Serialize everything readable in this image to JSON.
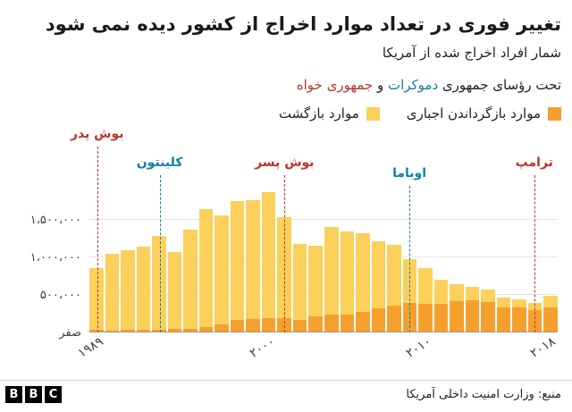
{
  "header": {
    "title": "تغییر فوری در تعداد موارد اخراج از کشور دیده نمی شود",
    "subtitle": "شمار افراد اخراج شده از آمریکا",
    "party_line": {
      "prefix": "تحت رؤسای جمهوری ",
      "democrat": "دموکرات",
      "conjunction": " و ",
      "republican": "جمهوری خواه"
    }
  },
  "colors": {
    "democrat_blue": "#1380A1",
    "republican_red": "#BB342C",
    "returns_yellow": "#FBD05B",
    "removals_orange": "#F5A02C"
  },
  "legend": [
    {
      "label": "موارد بازگرداندن اجباری",
      "color": "#F5A02C"
    },
    {
      "label": "موارد بازگشت",
      "color": "#FBD05B"
    }
  ],
  "chart_data": {
    "type": "bar",
    "stacked": true,
    "title": "شمار افراد اخراج شده از آمریکا",
    "xlabel": "",
    "ylabel": "",
    "x": [
      1989,
      1990,
      1991,
      1992,
      1993,
      1994,
      1995,
      1996,
      1997,
      1998,
      1999,
      2000,
      2001,
      2002,
      2003,
      2004,
      2005,
      2006,
      2007,
      2008,
      2009,
      2010,
      2011,
      2012,
      2013,
      2014,
      2015,
      2016,
      2017,
      2018
    ],
    "series": [
      {
        "name": "موارد بازگرداندن اجباری",
        "color": "#F5A02C",
        "values": [
          34000,
          30000,
          33000,
          44000,
          43000,
          46000,
          51000,
          70000,
          114000,
          174000,
          183000,
          188000,
          189000,
          165000,
          211000,
          241000,
          246000,
          281000,
          319000,
          360000,
          392000,
          383000,
          387000,
          416000,
          434000,
          407000,
          333000,
          340000,
          295000,
          337000
        ]
      },
      {
        "name": "موارد بازگشت",
        "color": "#FBD05B",
        "values": [
          830000,
          1022000,
          1061000,
          1105000,
          1243000,
          1029000,
          1313000,
          1573000,
          1440000,
          1570000,
          1574000,
          1676000,
          1349000,
          1012000,
          945000,
          1166000,
          1096000,
          1043000,
          891000,
          811000,
          582000,
          474000,
          322000,
          230000,
          178000,
          163000,
          129000,
          106000,
          100000,
          159000
        ]
      }
    ],
    "ylim": [
      0,
      1900000
    ],
    "yticks": [
      {
        "value": 1500000,
        "label": "۱،۵۰۰،۰۰۰"
      },
      {
        "value": 1000000,
        "label": "۱،۰۰۰،۰۰۰"
      },
      {
        "value": 500000,
        "label": "۵۰۰،۰۰۰"
      },
      {
        "value": 0,
        "label": "صفر"
      }
    ],
    "xticks": [
      {
        "year": 1989,
        "label": "۱۹۸۹"
      },
      {
        "year": 2000,
        "label": "۲۰۰۰"
      },
      {
        "year": 2010,
        "label": "۲۰۱۰"
      },
      {
        "year": 2018,
        "label": "۲۰۱۸"
      }
    ],
    "presidents": [
      {
        "name": "بوش پدر",
        "year": 1989,
        "party": "republican",
        "color": "#BB342C"
      },
      {
        "name": "کلینتون",
        "year": 1993,
        "party": "democrat",
        "color": "#1380A1"
      },
      {
        "name": "بوش پسر",
        "year": 2001,
        "party": "republican",
        "color": "#BB342C"
      },
      {
        "name": "اوباما",
        "year": 2009,
        "party": "democrat",
        "color": "#1380A1"
      },
      {
        "name": "ترامپ",
        "year": 2017,
        "party": "republican",
        "color": "#BB342C"
      }
    ],
    "grid": true,
    "legend_position": "top"
  },
  "footer": {
    "source": "منبع: وزارت امنیت داخلی آمریکا",
    "bbc_letters": [
      "B",
      "B",
      "C"
    ]
  }
}
